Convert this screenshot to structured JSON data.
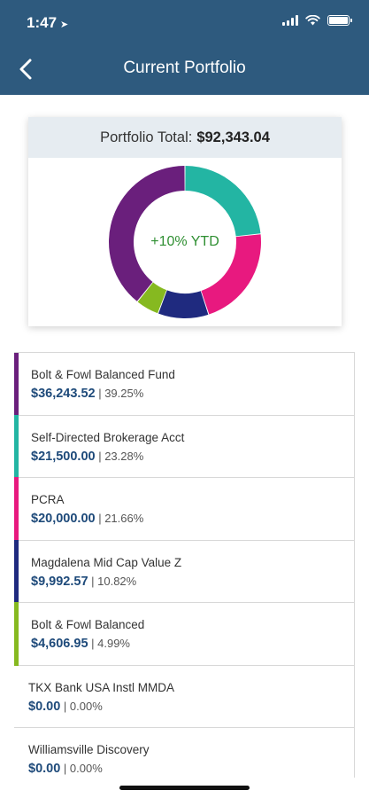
{
  "status_bar": {
    "time": "1:47",
    "location_arrow": "➤"
  },
  "header": {
    "title": "Current Portfolio",
    "back_icon": "chevron-left-icon"
  },
  "portfolio": {
    "total_label": "Portfolio Total:",
    "total_value": "$92,343.04",
    "ytd_label": "+10% YTD"
  },
  "chart_data": {
    "type": "pie",
    "donut": true,
    "center_label": "+10% YTD",
    "slices": [
      {
        "label": "Self-Directed Brokerage Acct",
        "value": 23.28,
        "color": "#23b5a3"
      },
      {
        "label": "PCRA",
        "value": 21.66,
        "color": "#e8197f"
      },
      {
        "label": "Magdalena Mid Cap Value Z",
        "value": 10.82,
        "color": "#1f2a7f"
      },
      {
        "label": "Bolt & Fowl Balanced",
        "value": 4.99,
        "color": "#86b920"
      },
      {
        "label": "Bolt & Fowl Balanced Fund",
        "value": 39.25,
        "color": "#6a1f7c"
      }
    ]
  },
  "holdings": [
    {
      "name": "Bolt & Fowl Balanced Fund",
      "amount": "$36,243.52",
      "sep": " | ",
      "percent": "39.25%",
      "color": "#6a1f7c"
    },
    {
      "name": "Self-Directed Brokerage Acct",
      "amount": "$21,500.00",
      "sep": " | ",
      "percent": "23.28%",
      "color": "#23b5a3"
    },
    {
      "name": "PCRA",
      "amount": "$20,000.00",
      "sep": " | ",
      "percent": "21.66%",
      "color": "#e8197f"
    },
    {
      "name": "Magdalena Mid Cap Value Z",
      "amount": "$9,992.57",
      "sep": " | ",
      "percent": "10.82%",
      "color": "#1f2a7f"
    },
    {
      "name": "Bolt & Fowl Balanced",
      "amount": "$4,606.95",
      "sep": " | ",
      "percent": "4.99%",
      "color": "#86b920"
    },
    {
      "name": "TKX Bank USA Instl MMDA",
      "amount": "$0.00",
      "sep": " | ",
      "percent": "0.00%",
      "color": ""
    },
    {
      "name": "Williamsville Discovery",
      "amount": "$0.00",
      "sep": " | ",
      "percent": "0.00%",
      "color": ""
    }
  ]
}
